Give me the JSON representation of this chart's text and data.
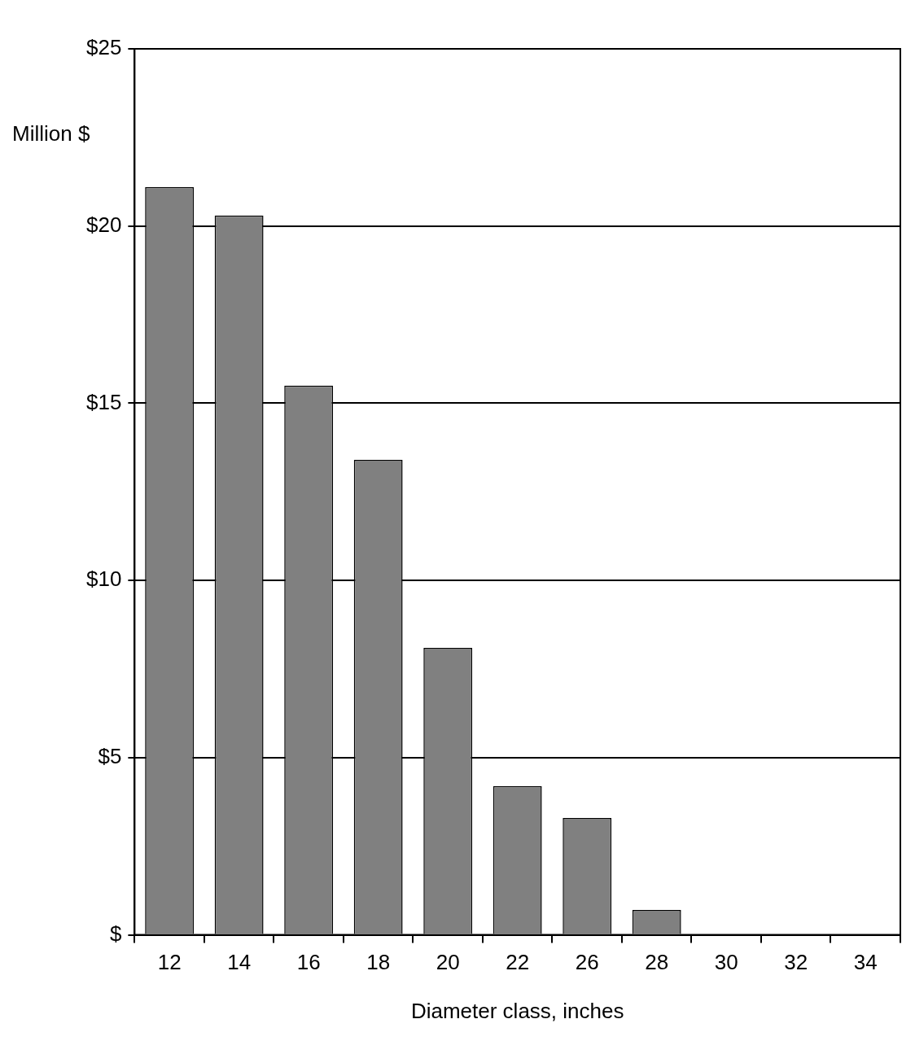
{
  "chart_data": {
    "type": "bar",
    "xlabel": "Diameter class, inches",
    "ylabel": "Million $",
    "categories": [
      "12",
      "14",
      "16",
      "18",
      "20",
      "22",
      "26",
      "28",
      "30",
      "32",
      "34"
    ],
    "values": [
      21.1,
      20.3,
      15.5,
      13.4,
      8.1,
      4.2,
      3.3,
      0.7,
      0,
      0,
      0
    ],
    "color": "#808080",
    "ylim": [
      0,
      25
    ],
    "yticks": [
      {
        "value": 0,
        "label": "$"
      },
      {
        "value": 5,
        "label": "$5"
      },
      {
        "value": 10,
        "label": "$10"
      },
      {
        "value": 15,
        "label": "$15"
      },
      {
        "value": 20,
        "label": "$20"
      },
      {
        "value": 25,
        "label": "$25"
      }
    ],
    "grid": "y",
    "legend": false
  }
}
